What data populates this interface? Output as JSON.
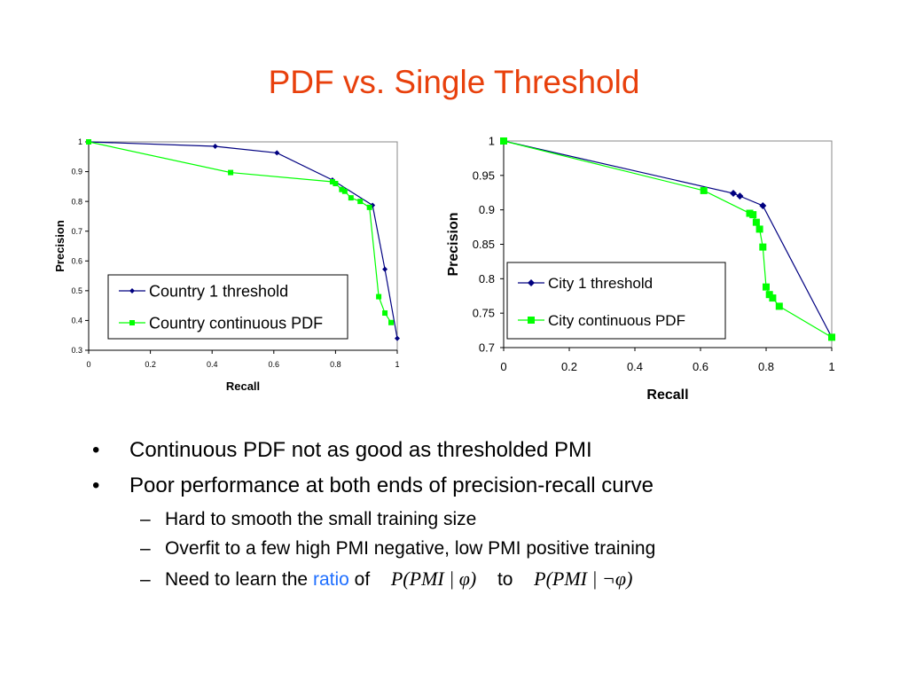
{
  "slide": {
    "title": "PDF vs. Single Threshold",
    "title_color": "#e8400c"
  },
  "chart_data": [
    {
      "type": "line",
      "xlabel": "Recall",
      "ylabel": "Precision",
      "xlim": [
        0,
        1
      ],
      "ylim": [
        0.3,
        1
      ],
      "xticks": [
        "0",
        "0.2",
        "0.4",
        "0.6",
        "0.8",
        "1"
      ],
      "yticks": [
        "0.3",
        "0.4",
        "0.5",
        "0.6",
        "0.7",
        "0.8",
        "0.9",
        "1"
      ],
      "grid": false,
      "legend_position": "bottom-right",
      "series": [
        {
          "name": "Country 1 threshold",
          "color": "#000080",
          "marker": "diamond",
          "points": [
            [
              0,
              1
            ],
            [
              0.41,
              0.985
            ],
            [
              0.61,
              0.963
            ],
            [
              0.79,
              0.872
            ],
            [
              0.92,
              0.787
            ],
            [
              0.96,
              0.572
            ],
            [
              1.0,
              0.34
            ]
          ]
        },
        {
          "name": "Country continuous PDF",
          "color": "#00ff00",
          "marker": "square",
          "points": [
            [
              0,
              1
            ],
            [
              0.46,
              0.897
            ],
            [
              0.79,
              0.866
            ],
            [
              0.8,
              0.86
            ],
            [
              0.82,
              0.84
            ],
            [
              0.83,
              0.834
            ],
            [
              0.85,
              0.812
            ],
            [
              0.88,
              0.8
            ],
            [
              0.91,
              0.78
            ],
            [
              0.94,
              0.48
            ],
            [
              0.96,
              0.425
            ],
            [
              0.98,
              0.393
            ]
          ]
        }
      ]
    },
    {
      "type": "line",
      "xlabel": "Recall",
      "ylabel": "Precision",
      "xlim": [
        0,
        1
      ],
      "ylim": [
        0.7,
        1
      ],
      "xticks": [
        "0",
        "0.2",
        "0.4",
        "0.6",
        "0.8",
        "1"
      ],
      "yticks": [
        "0.7",
        "0.75",
        "0.8",
        "0.85",
        "0.9",
        "0.95",
        "1"
      ],
      "grid": false,
      "legend_position": "bottom-right",
      "series": [
        {
          "name": "City 1 threshold",
          "color": "#000080",
          "marker": "diamond",
          "points": [
            [
              0,
              1
            ],
            [
              0.7,
              0.924
            ],
            [
              0.72,
              0.92
            ],
            [
              0.79,
              0.906
            ],
            [
              1.0,
              0.715
            ]
          ]
        },
        {
          "name": "City continuous PDF",
          "color": "#00ff00",
          "marker": "square",
          "points": [
            [
              0,
              1
            ],
            [
              0.61,
              0.928
            ],
            [
              0.75,
              0.895
            ],
            [
              0.76,
              0.893
            ],
            [
              0.77,
              0.882
            ],
            [
              0.78,
              0.872
            ],
            [
              0.79,
              0.846
            ],
            [
              0.8,
              0.788
            ],
            [
              0.81,
              0.777
            ],
            [
              0.82,
              0.772
            ],
            [
              0.84,
              0.76
            ],
            [
              1.0,
              0.715
            ]
          ]
        }
      ]
    }
  ],
  "bullets": [
    {
      "text": "Continuous PDF not as good as thresholded PMI"
    },
    {
      "text": "Poor performance at both ends of precision-recall curve"
    }
  ],
  "subbullets": [
    {
      "text": "Hard to smooth the small training size"
    },
    {
      "text": "Overfit to a few high PMI negative, low PMI positive training"
    }
  ],
  "last_sub": {
    "prefix": "Need to learn the",
    "ratio_word": "ratio",
    "of_word": "of",
    "math1": "P(PMI | φ)",
    "to_word": "to",
    "math2": "P(PMI | ¬φ)"
  },
  "bullet_symbol": "•",
  "sub_symbol": "–"
}
